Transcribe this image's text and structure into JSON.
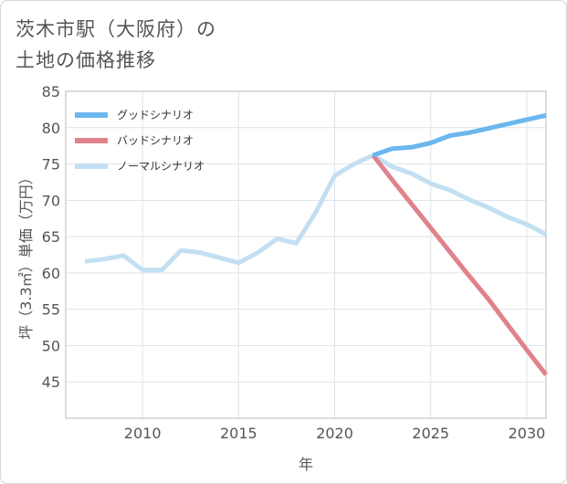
{
  "title": "茨木市駅（大阪府）の\n土地の価格推移",
  "chart_data": {
    "type": "line",
    "title": "茨木市駅（大阪府）の土地の価格推移",
    "xlabel": "年",
    "ylabel": "坪（3.3㎡）単価（万円）",
    "xlim": [
      2006,
      2031
    ],
    "ylim": [
      40,
      85
    ],
    "xticks": [
      2010,
      2015,
      2020,
      2025,
      2030
    ],
    "yticks": [
      45,
      50,
      55,
      60,
      65,
      70,
      75,
      80,
      85
    ],
    "legend_position": "top-left",
    "series": [
      {
        "name": "グッドシナリオ",
        "color": "#6bb7ee",
        "x": [
          2022,
          2023,
          2024,
          2025,
          2026,
          2027,
          2028,
          2029,
          2030,
          2031
        ],
        "y": [
          76.2,
          77.1,
          77.3,
          77.9,
          78.9,
          79.3,
          79.9,
          80.5,
          81.1,
          81.7
        ]
      },
      {
        "name": "バッドシナリオ",
        "color": "#e0828c",
        "x": [
          2022,
          2023,
          2024,
          2025,
          2026,
          2027,
          2028,
          2029,
          2030,
          2031
        ],
        "y": [
          76.2,
          72.8,
          69.5,
          66.2,
          62.9,
          59.6,
          56.4,
          52.9,
          49.4,
          46.0
        ]
      },
      {
        "name": "ノーマルシナリオ",
        "color": "#c3dff2",
        "x": [
          2007,
          2008,
          2009,
          2010,
          2011,
          2012,
          2013,
          2014,
          2015,
          2016,
          2017,
          2018,
          2019,
          2020,
          2021,
          2022,
          2023,
          2024,
          2025,
          2026,
          2027,
          2028,
          2029,
          2030,
          2031
        ],
        "y": [
          61.6,
          61.9,
          62.4,
          60.4,
          60.4,
          63.1,
          62.8,
          62.1,
          61.4,
          62.8,
          64.7,
          64.1,
          68.3,
          73.4,
          75.0,
          76.2,
          74.6,
          73.7,
          72.3,
          71.4,
          70.1,
          69.0,
          67.7,
          66.7,
          65.3
        ]
      }
    ]
  }
}
